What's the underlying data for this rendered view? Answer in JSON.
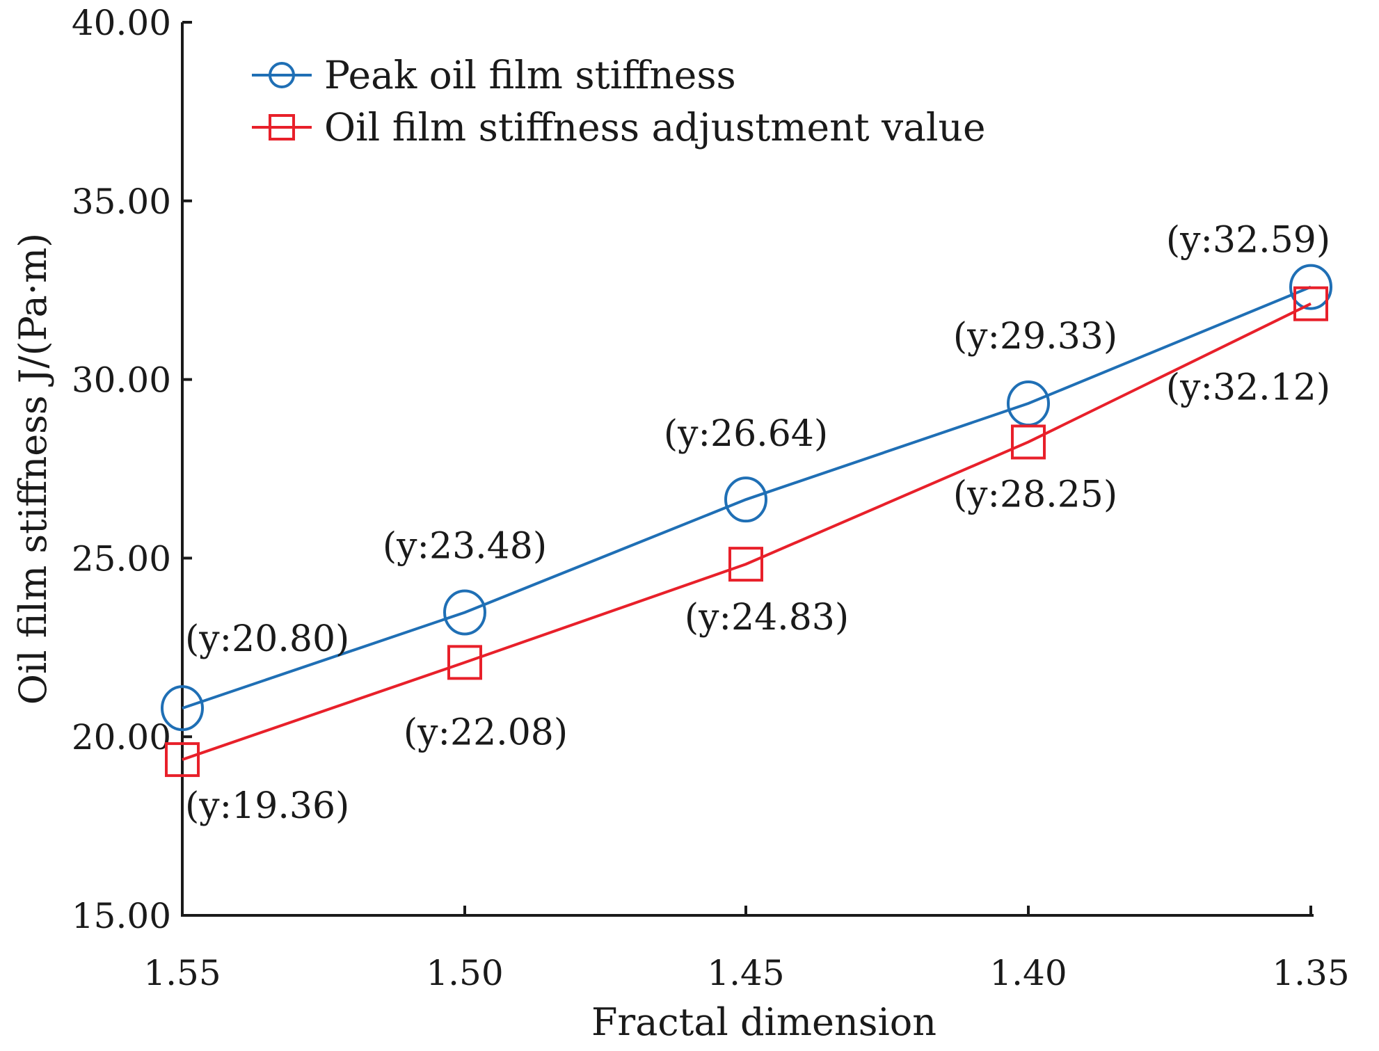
{
  "chart_data": {
    "type": "line",
    "title": "",
    "xlabel": "Fractal dimension",
    "ylabel": "Oil film stiffness J/(Pa·m)",
    "categories": [
      "1.55",
      "1.50",
      "1.45",
      "1.40",
      "1.35"
    ],
    "ylim": [
      15.0,
      40.0
    ],
    "y_ticks": [
      "15.00",
      "20.00",
      "25.00",
      "30.00",
      "35.00",
      "40.00"
    ],
    "legend_position": "top-left",
    "grid": false,
    "series": [
      {
        "name": "Peak oil film stiffness",
        "color": "#1f6fb5",
        "marker": "circle",
        "values": [
          20.8,
          23.48,
          26.64,
          29.33,
          32.59
        ],
        "labels": [
          "(y:20.80)",
          "(y:23.48)",
          "(y:26.64)",
          "(y:29.33)",
          "(y:32.59)"
        ]
      },
      {
        "name": "Oil film stiffness adjustment value",
        "color": "#e8202a",
        "marker": "square",
        "values": [
          19.36,
          22.08,
          24.83,
          28.25,
          32.12
        ],
        "labels": [
          "(y:19.36)",
          "(y:22.08)",
          "(y:24.83)",
          "(y:28.25)",
          "(y:32.12)"
        ]
      }
    ]
  }
}
